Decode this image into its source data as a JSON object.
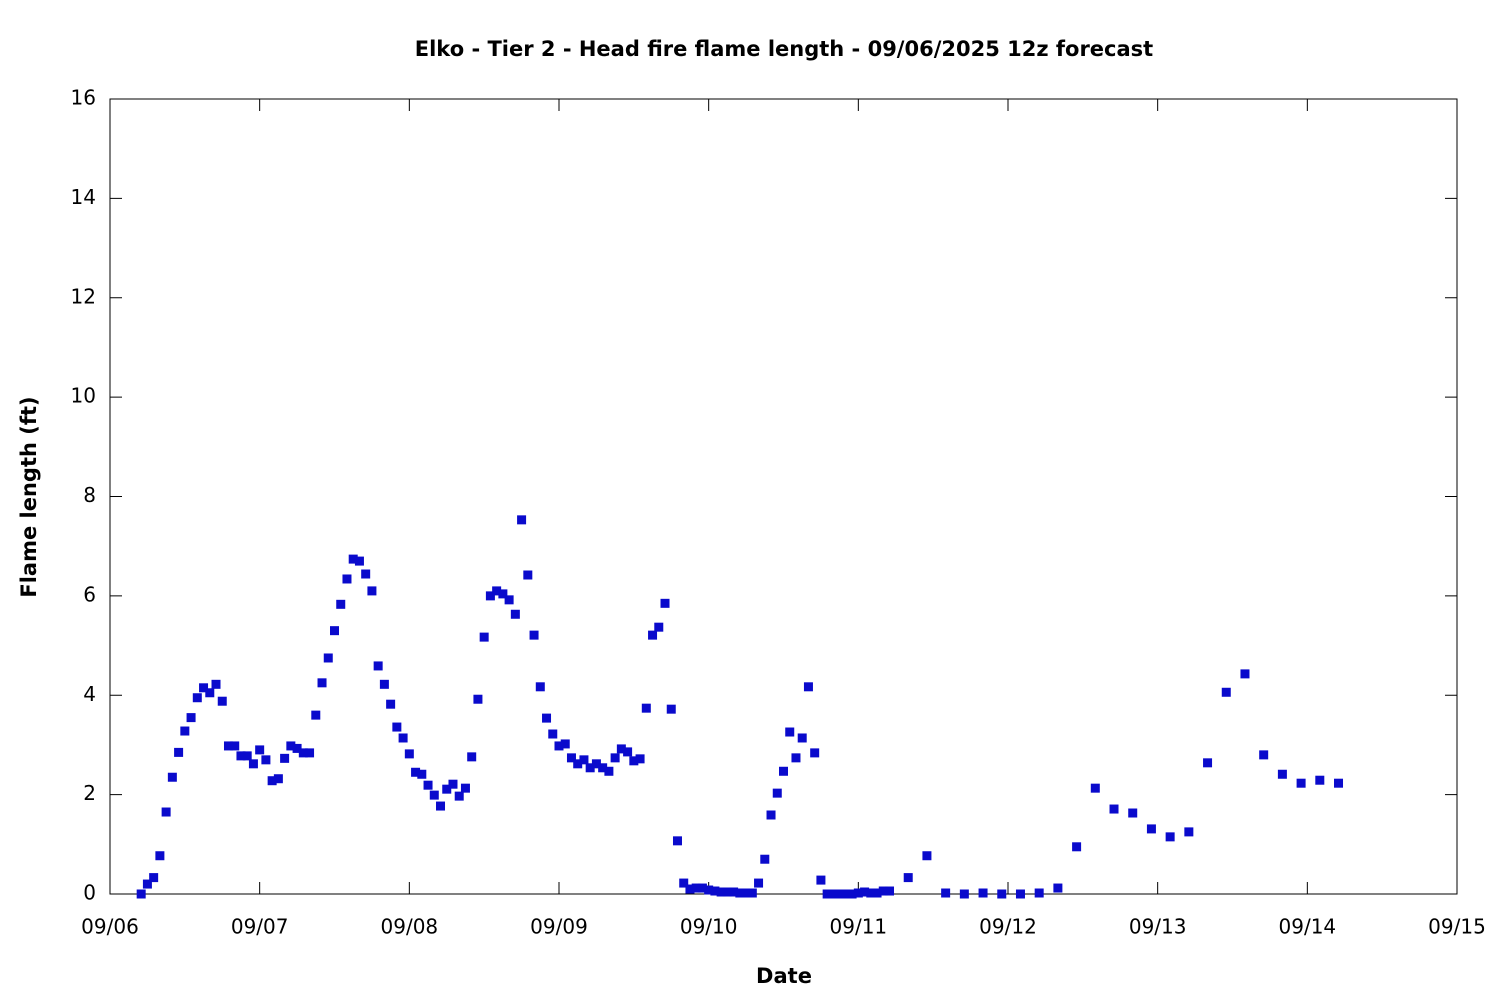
{
  "chart_data": {
    "type": "scatter",
    "title": "Elko - Tier 2 - Head fire flame length - 09/06/2025 12z forecast",
    "x_label": "Date",
    "y_label": "Flame length (ft)",
    "xlim": [
      0,
      216
    ],
    "xticks": [
      {
        "value": 0,
        "label": "09/06"
      },
      {
        "value": 24,
        "label": "09/07"
      },
      {
        "value": 48,
        "label": "09/08"
      },
      {
        "value": 72,
        "label": "09/09"
      },
      {
        "value": 96,
        "label": "09/10"
      },
      {
        "value": 120,
        "label": "09/11"
      },
      {
        "value": 144,
        "label": "09/12"
      },
      {
        "value": 168,
        "label": "09/13"
      },
      {
        "value": 192,
        "label": "09/14"
      },
      {
        "value": 216,
        "label": "09/15"
      }
    ],
    "ylim": [
      0,
      16
    ],
    "yticks": [
      0,
      2,
      4,
      6,
      8,
      10,
      12,
      14,
      16
    ],
    "grid": false,
    "color": "#0a0acc",
    "x": [
      5,
      6,
      7,
      8,
      9,
      10,
      11,
      12,
      13,
      14,
      15,
      16,
      17,
      18,
      19,
      20,
      21,
      22,
      23,
      24,
      25,
      26,
      27,
      28,
      29,
      30,
      31,
      32,
      33,
      34,
      35,
      36,
      37,
      38,
      39,
      40,
      41,
      42,
      43,
      44,
      45,
      46,
      47,
      48,
      49,
      50,
      51,
      52,
      53,
      54,
      55,
      56,
      57,
      58,
      59,
      60,
      61,
      62,
      63,
      64,
      65,
      66,
      67,
      68,
      69,
      70,
      71,
      72,
      73,
      74,
      75,
      76,
      77,
      78,
      79,
      80,
      81,
      82,
      83,
      84,
      85,
      86,
      87,
      88,
      89,
      90,
      91,
      92,
      93,
      94,
      95,
      96,
      97,
      98,
      99,
      100,
      101,
      102,
      103,
      104,
      105,
      106,
      107,
      108,
      109,
      110,
      111,
      112,
      113,
      114,
      115,
      116,
      117,
      118,
      119,
      120,
      121,
      122,
      123,
      124,
      125,
      128,
      131,
      134,
      137,
      140,
      143,
      146,
      149,
      152,
      155,
      158,
      161,
      164,
      167,
      170,
      173,
      176,
      179,
      182,
      185,
      188,
      191,
      194,
      197
    ],
    "values": [
      0.0,
      0.2,
      0.33,
      0.77,
      1.65,
      2.35,
      2.85,
      3.28,
      3.55,
      3.95,
      4.15,
      4.05,
      4.22,
      3.88,
      2.98,
      2.98,
      2.78,
      2.78,
      2.62,
      2.9,
      2.7,
      2.28,
      2.32,
      2.73,
      2.98,
      2.93,
      2.84,
      2.84,
      3.6,
      4.25,
      4.75,
      5.3,
      5.83,
      6.34,
      6.74,
      6.7,
      6.44,
      6.1,
      4.59,
      4.22,
      3.82,
      3.36,
      3.14,
      2.82,
      2.45,
      2.41,
      2.19,
      1.99,
      1.77,
      2.11,
      2.21,
      1.97,
      2.13,
      2.76,
      3.92,
      5.17,
      6.0,
      6.1,
      6.04,
      5.92,
      5.63,
      7.53,
      6.42,
      5.21,
      4.17,
      3.54,
      3.22,
      2.98,
      3.02,
      2.74,
      2.62,
      2.7,
      2.54,
      2.62,
      2.54,
      2.47,
      2.74,
      2.92,
      2.86,
      2.68,
      2.72,
      3.74,
      5.21,
      5.37,
      5.85,
      3.72,
      1.07,
      0.22,
      0.1,
      0.12,
      0.12,
      0.08,
      0.06,
      0.04,
      0.04,
      0.04,
      0.02,
      0.02,
      0.02,
      0.22,
      0.7,
      1.59,
      2.03,
      2.47,
      3.26,
      2.74,
      3.14,
      4.17,
      2.84,
      0.28,
      0,
      0,
      0,
      0,
      0,
      0.02,
      0.04,
      0.02,
      0.02,
      0.06,
      0.06,
      0.33,
      0.77,
      0.02,
      0,
      0.02,
      0,
      0,
      0.02,
      0.12,
      0.95,
      2.13,
      1.71,
      1.63,
      1.31,
      1.15,
      1.25,
      2.64,
      4.06,
      4.43,
      2.8,
      2.41,
      2.23,
      2.29,
      2.23
    ]
  }
}
